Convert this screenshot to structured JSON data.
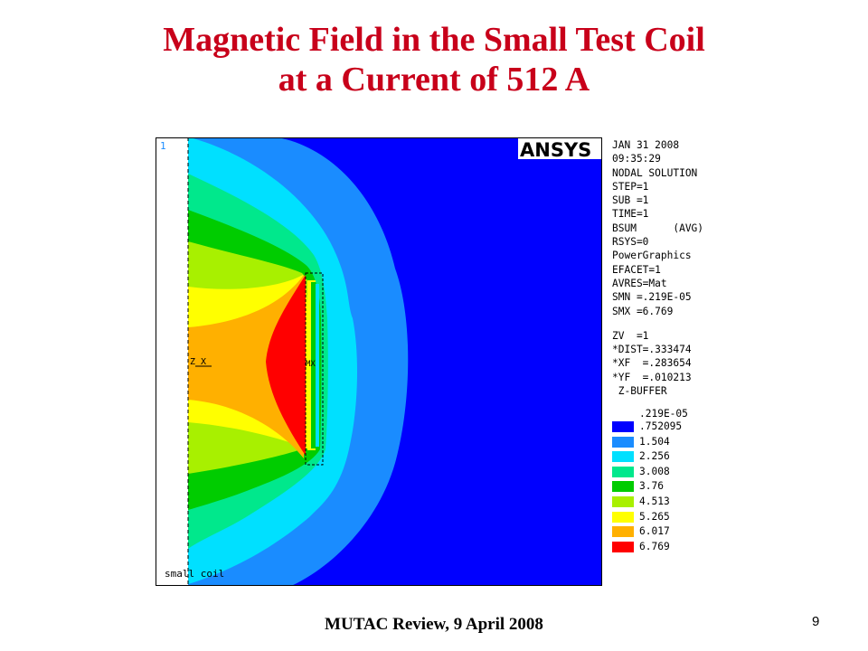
{
  "slide": {
    "title_line1": "Magnetic Field in the Small Test Coil",
    "title_line2": "at a Current of 512 A",
    "footer": "MUTAC Review, 9 April 2008",
    "page_number": "9"
  },
  "plot": {
    "window_number": "1",
    "logo_text": "ANSYS",
    "axis_triad": "Z  X",
    "mx_marker": "MX",
    "region_label": "small coil",
    "colors": {
      "background": "#0000ff",
      "band1": "#1a8cff",
      "band2": "#00e0ff",
      "band3": "#00e88c",
      "band4": "#00cc00",
      "band5": "#a8f000",
      "band6": "#ffff00",
      "band7": "#ffb000",
      "band8": "#ff0000"
    }
  },
  "info_panel": {
    "lines_top": [
      "JAN 31 2008",
      "09:35:29",
      "NODAL SOLUTION",
      "STEP=1",
      "SUB =1",
      "TIME=1",
      "BSUM      (AVG)",
      "RSYS=0",
      "PowerGraphics",
      "EFACET=1",
      "AVRES=Mat",
      "SMN =.219E-05",
      "SMX =6.769"
    ],
    "lines_bottom": [
      "ZV  =1",
      "*DIST=.333474",
      "*XF  =.283654",
      "*YF  =.010213",
      " Z-BUFFER"
    ]
  },
  "legend": {
    "top_label": ".219E-05",
    "items": [
      {
        "label": ".752095",
        "color": "#0000ff"
      },
      {
        "label": "1.504",
        "color": "#1a8cff"
      },
      {
        "label": "2.256",
        "color": "#00e0ff"
      },
      {
        "label": "3.008",
        "color": "#00e88c"
      },
      {
        "label": "3.76",
        "color": "#00cc00"
      },
      {
        "label": "4.513",
        "color": "#a8f000"
      },
      {
        "label": "5.265",
        "color": "#ffff00"
      },
      {
        "label": "6.017",
        "color": "#ffb000"
      },
      {
        "label": "6.769",
        "color": "#ff0000"
      }
    ]
  }
}
